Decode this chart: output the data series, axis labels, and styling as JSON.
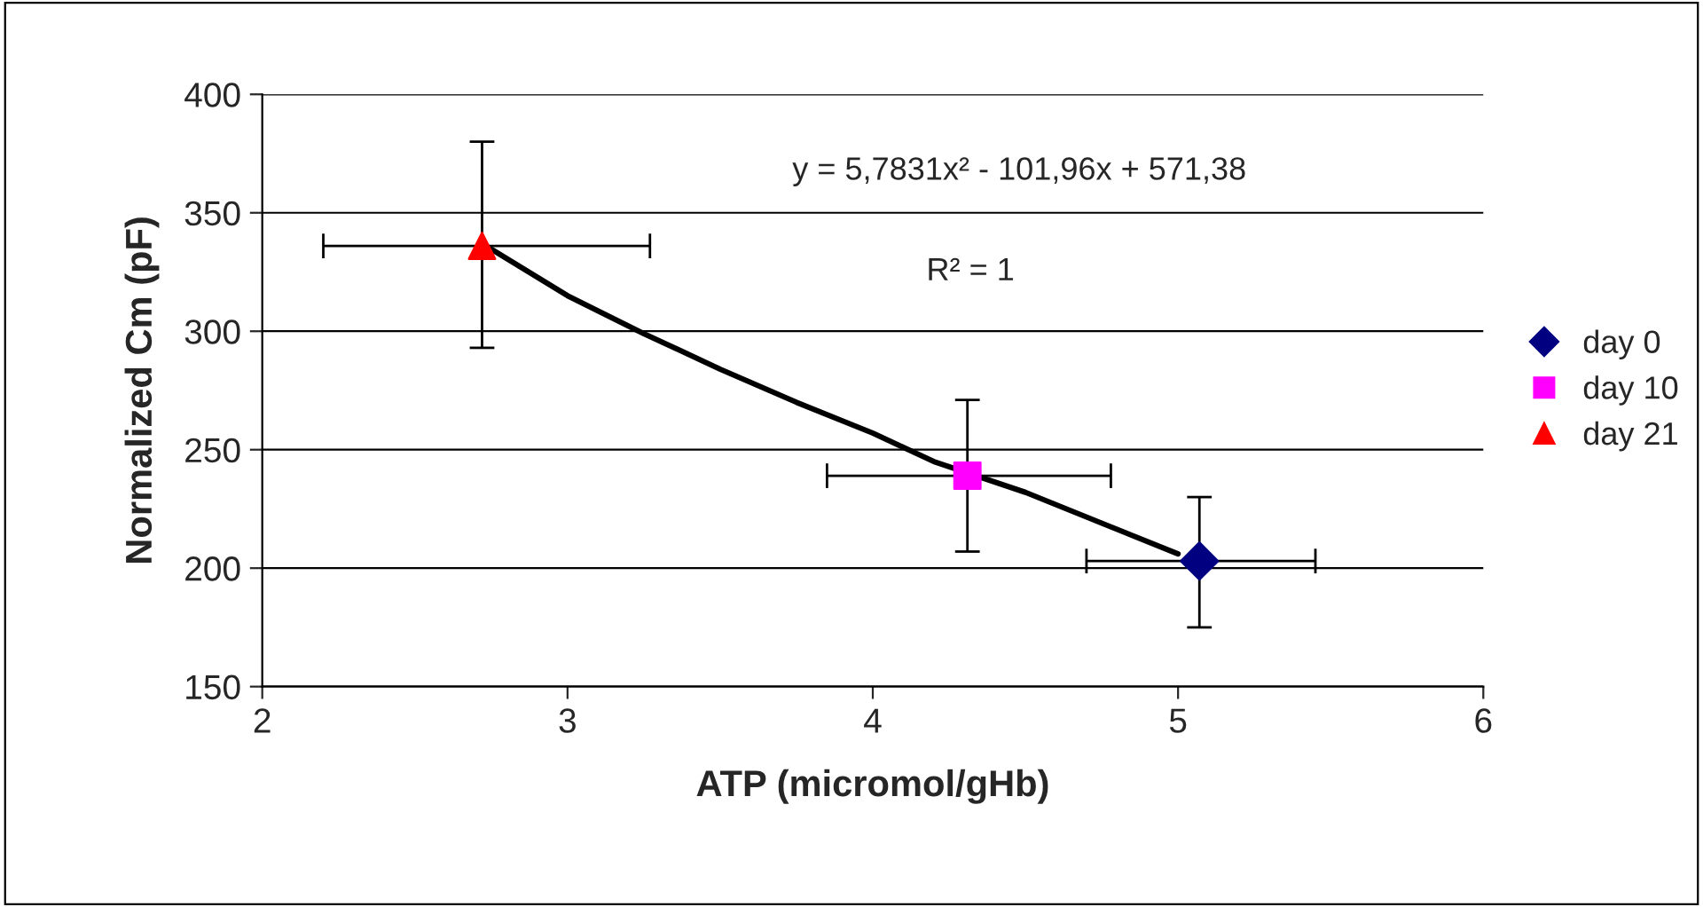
{
  "chart_data": {
    "type": "scatter",
    "xlabel": "ATP (micromol/gHb)",
    "ylabel": "Normalized Cm (pF)",
    "xlim": [
      2,
      6
    ],
    "xticks": [
      2,
      3,
      4,
      5,
      6
    ],
    "ylim": [
      150,
      400
    ],
    "yticks": [
      150,
      200,
      250,
      300,
      350,
      400
    ],
    "grid": "y",
    "legend": "right",
    "annotations": [
      "y = 5,7831x² - 101,96x + 571,38",
      "R² = 1"
    ],
    "series": [
      {
        "type": "line",
        "color": "#000000",
        "marker": "none",
        "line_style": "solid",
        "x": [
          2.72,
          3.0,
          3.25,
          3.5,
          3.75,
          4.0,
          4.2,
          4.5,
          4.75,
          5.0
        ],
        "values": [
          337,
          315,
          299,
          284,
          270,
          257,
          245,
          232,
          219,
          206
        ]
      },
      {
        "name": "day 0",
        "color": "#000080",
        "marker": "diamond",
        "x": [
          5.07
        ],
        "values": [
          203
        ],
        "errors": [
          [
            175,
            230
          ]
        ],
        "xerrors": [
          [
            4.7,
            5.45
          ]
        ]
      },
      {
        "name": "day 10",
        "color": "#ff00ff",
        "marker": "square",
        "x": [
          4.31
        ],
        "values": [
          239
        ],
        "errors": [
          [
            207,
            271
          ]
        ],
        "xerrors": [
          [
            3.85,
            4.78
          ]
        ]
      },
      {
        "name": "day 21",
        "color": "#ff0000",
        "marker": "triangle",
        "x": [
          2.72
        ],
        "values": [
          336
        ],
        "errors": [
          [
            293,
            380
          ]
        ],
        "xerrors": [
          [
            2.2,
            3.27
          ]
        ]
      }
    ]
  }
}
